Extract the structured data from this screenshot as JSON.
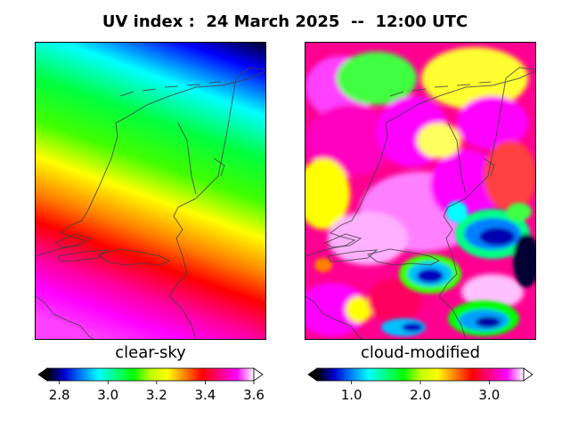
{
  "title": "UV index :  24 March 2025  --  12:00 UTC",
  "panels": [
    {
      "label": "clear-sky",
      "colorbar": {
        "min": 2.75,
        "max": 3.6,
        "ticks": [
          2.8,
          3.0,
          3.2,
          3.4,
          3.6
        ],
        "tick_labels": [
          "2.8",
          "3.0",
          "3.2",
          "3.4",
          "3.6"
        ]
      }
    },
    {
      "label": "cloud-modified",
      "colorbar": {
        "min": 0.5,
        "max": 3.5,
        "ticks": [
          1.0,
          2.0,
          3.0
        ],
        "tick_labels": [
          "1.0",
          "2.0",
          "3.0"
        ]
      }
    }
  ],
  "colormap": [
    "#000000",
    "#0000d0",
    "#0080ff",
    "#00ffff",
    "#00ff80",
    "#00ff00",
    "#c0ff00",
    "#ffff00",
    "#ff8000",
    "#ff0000",
    "#ff0080",
    "#ff00ff",
    "#ffffff"
  ]
}
